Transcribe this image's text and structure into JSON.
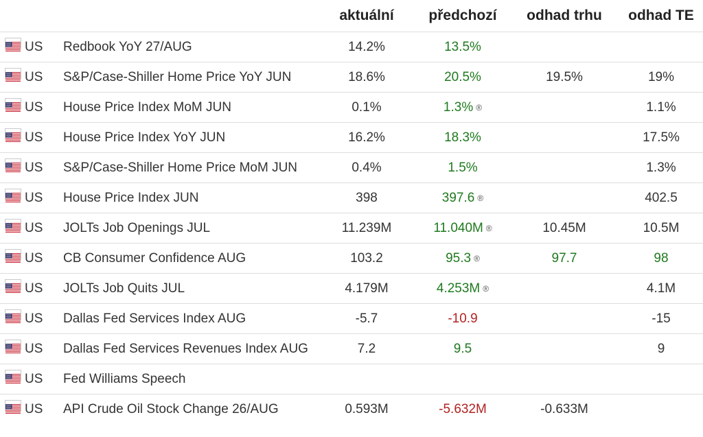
{
  "headers": {
    "actual": "aktuální",
    "previous": "předchozí",
    "consensus": "odhad trhu",
    "forecast": "odhad TE"
  },
  "colors": {
    "green": "#1e7a1e",
    "red": "#b22222",
    "text": "#333333",
    "row_border": "#dddddd"
  },
  "rows": [
    {
      "country": "US",
      "flag": "us-flag-icon",
      "event": "Redbook YoY 27/AUG",
      "actual": "14.2%",
      "previous": "13.5%",
      "previous_color": "green",
      "previous_revised": false,
      "consensus": "",
      "consensus_color": "plain",
      "forecast": "",
      "forecast_color": "plain"
    },
    {
      "country": "US",
      "flag": "us-flag-icon",
      "event": "S&P/Case-Shiller Home Price YoY JUN",
      "actual": "18.6%",
      "previous": "20.5%",
      "previous_color": "green",
      "previous_revised": false,
      "consensus": "19.5%",
      "consensus_color": "plain",
      "forecast": "19%",
      "forecast_color": "plain"
    },
    {
      "country": "US",
      "flag": "us-flag-icon",
      "event": "House Price Index MoM JUN",
      "actual": "0.1%",
      "previous": "1.3%",
      "previous_color": "green",
      "previous_revised": true,
      "consensus": "",
      "consensus_color": "plain",
      "forecast": "1.1%",
      "forecast_color": "plain"
    },
    {
      "country": "US",
      "flag": "us-flag-icon",
      "event": "House Price Index YoY JUN",
      "actual": "16.2%",
      "previous": "18.3%",
      "previous_color": "green",
      "previous_revised": false,
      "consensus": "",
      "consensus_color": "plain",
      "forecast": "17.5%",
      "forecast_color": "plain"
    },
    {
      "country": "US",
      "flag": "us-flag-icon",
      "event": "S&P/Case-Shiller Home Price MoM JUN",
      "actual": "0.4%",
      "previous": "1.5%",
      "previous_color": "green",
      "previous_revised": false,
      "consensus": "",
      "consensus_color": "plain",
      "forecast": "1.3%",
      "forecast_color": "plain"
    },
    {
      "country": "US",
      "flag": "us-flag-icon",
      "event": "House Price Index JUN",
      "actual": "398",
      "previous": "397.6",
      "previous_color": "green",
      "previous_revised": true,
      "consensus": "",
      "consensus_color": "plain",
      "forecast": "402.5",
      "forecast_color": "plain"
    },
    {
      "country": "US",
      "flag": "us-flag-icon",
      "event": "JOLTs Job Openings JUL",
      "actual": "11.239M",
      "previous": "11.040M",
      "previous_color": "green",
      "previous_revised": true,
      "consensus": "10.45M",
      "consensus_color": "plain",
      "forecast": "10.5M",
      "forecast_color": "plain"
    },
    {
      "country": "US",
      "flag": "us-flag-icon",
      "event": "CB Consumer Confidence AUG",
      "actual": "103.2",
      "previous": "95.3",
      "previous_color": "green",
      "previous_revised": true,
      "consensus": "97.7",
      "consensus_color": "green",
      "forecast": "98",
      "forecast_color": "green"
    },
    {
      "country": "US",
      "flag": "us-flag-icon",
      "event": "JOLTs Job Quits JUL",
      "actual": "4.179M",
      "previous": "4.253M",
      "previous_color": "green",
      "previous_revised": true,
      "consensus": "",
      "consensus_color": "plain",
      "forecast": "4.1M",
      "forecast_color": "plain"
    },
    {
      "country": "US",
      "flag": "us-flag-icon",
      "event": "Dallas Fed Services Index AUG",
      "actual": "-5.7",
      "previous": "-10.9",
      "previous_color": "red",
      "previous_revised": false,
      "consensus": "",
      "consensus_color": "plain",
      "forecast": "-15",
      "forecast_color": "plain"
    },
    {
      "country": "US",
      "flag": "us-flag-icon",
      "event": "Dallas Fed Services Revenues Index AUG",
      "actual": "7.2",
      "previous": "9.5",
      "previous_color": "green",
      "previous_revised": false,
      "consensus": "",
      "consensus_color": "plain",
      "forecast": "9",
      "forecast_color": "plain"
    },
    {
      "country": "US",
      "flag": "us-flag-icon",
      "event": "Fed Williams Speech",
      "actual": "",
      "previous": "",
      "previous_color": "plain",
      "previous_revised": false,
      "consensus": "",
      "consensus_color": "plain",
      "forecast": "",
      "forecast_color": "plain"
    },
    {
      "country": "US",
      "flag": "us-flag-icon",
      "event": "API Crude Oil Stock Change 26/AUG",
      "actual": "0.593M",
      "previous": "-5.632M",
      "previous_color": "red",
      "previous_revised": false,
      "consensus": "-0.633M",
      "consensus_color": "plain",
      "forecast": "",
      "forecast_color": "plain"
    }
  ],
  "revised_icon": "®"
}
